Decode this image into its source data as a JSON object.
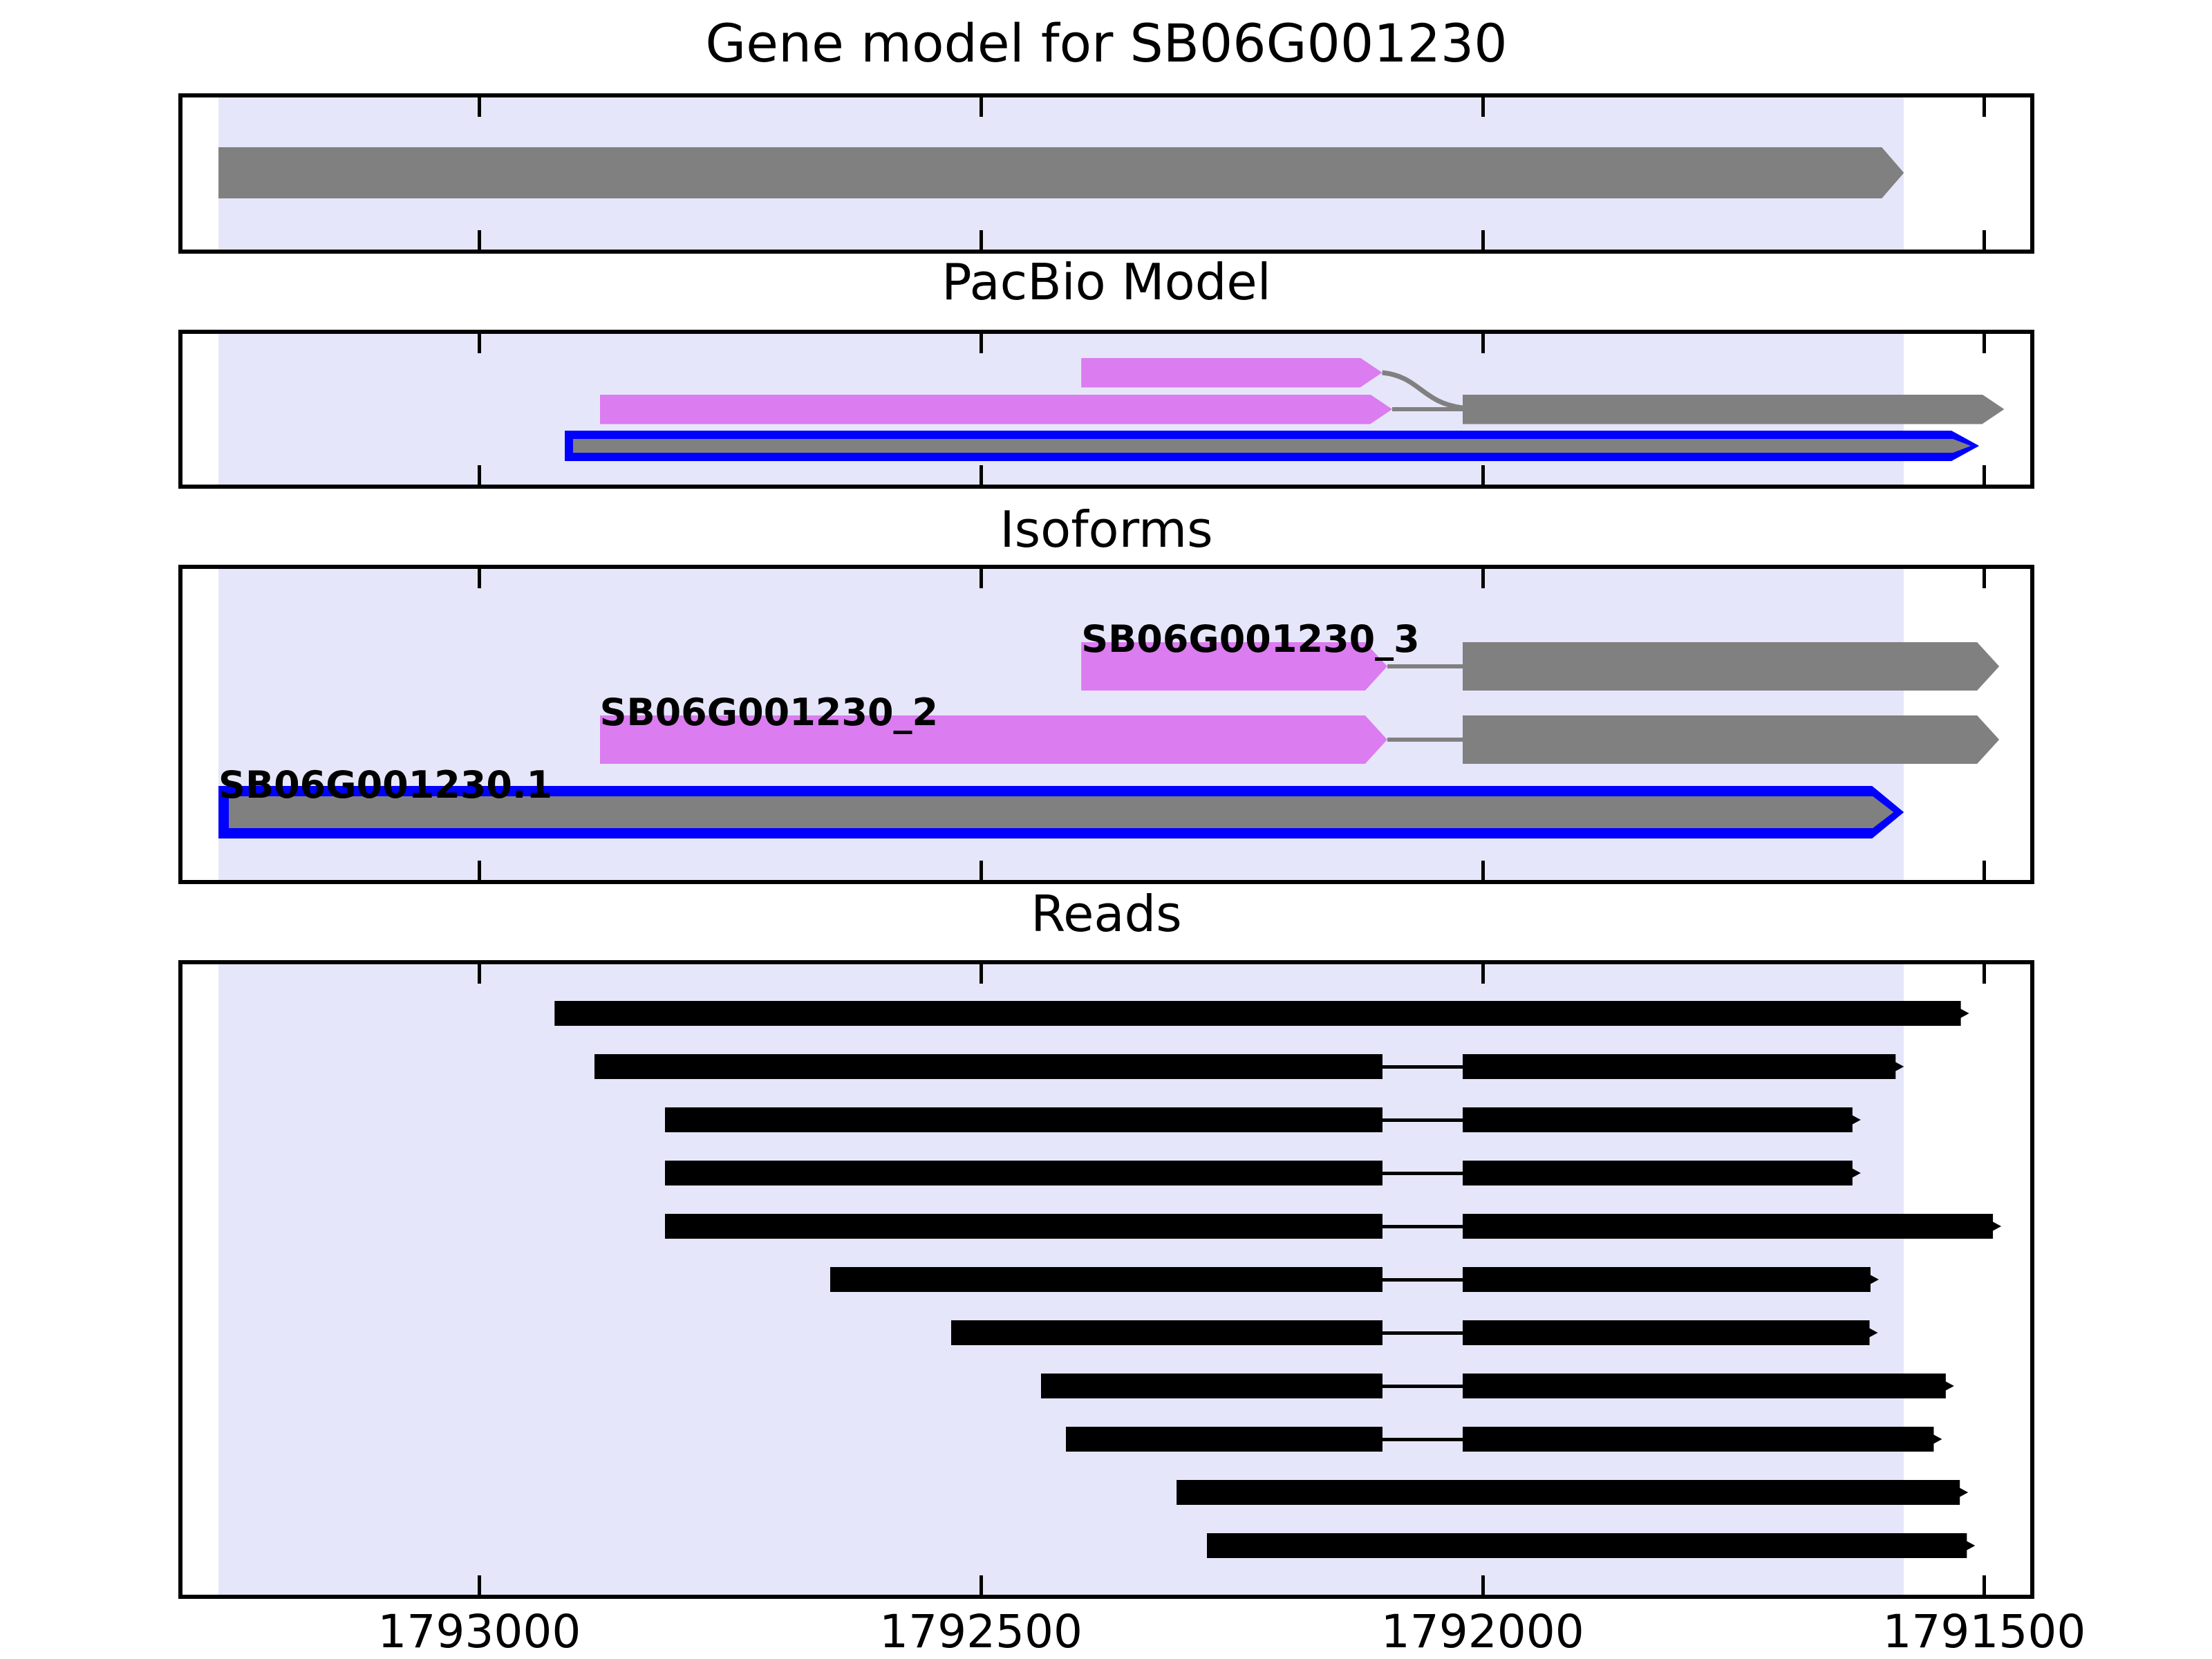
{
  "chart_data": {
    "type": "genomic-tracks",
    "title": "Gene model for SB06G001230",
    "x_axis": {
      "left_value": 1793300,
      "right_value": 1791450,
      "direction": "decreasing",
      "tick_values": [
        1793000,
        1792500,
        1792000,
        1791500
      ],
      "tick_labels": [
        "1793000",
        "1792500",
        "1792000",
        "1791500"
      ]
    },
    "highlight_region": {
      "start": 1793260,
      "end": 1791580
    },
    "panels": [
      {
        "id": "gene",
        "title": "Gene model for SB06G001230",
        "features": [
          {
            "kind": "arrow",
            "color": "gray",
            "start": 1793260,
            "end": 1791580,
            "row": 0
          }
        ]
      },
      {
        "id": "pacbio",
        "title": "PacBio Model",
        "features": [
          {
            "kind": "arrow",
            "color": "violet",
            "start": 1792400,
            "end": 1792100,
            "row": 0
          },
          {
            "kind": "curve",
            "from": 1792100,
            "to": 1792020,
            "from_row": 0,
            "to_row": 1
          },
          {
            "kind": "line",
            "from": 1792090,
            "to": 1792020,
            "row": 1,
            "color": "gray"
          },
          {
            "kind": "arrow",
            "color": "violet",
            "start": 1792880,
            "end": 1792090,
            "row": 1
          },
          {
            "kind": "arrow",
            "color": "gray",
            "start": 1792020,
            "end": 1791480,
            "row": 1
          },
          {
            "kind": "ref-bar",
            "start": 1792915,
            "end": 1791505,
            "row": 2
          }
        ]
      },
      {
        "id": "isoforms",
        "title": "Isoforms",
        "features": [
          {
            "kind": "label",
            "text": "SB06G001230_3",
            "at": 1792400,
            "row": 0
          },
          {
            "kind": "line",
            "from": 1792095,
            "to": 1792020,
            "row": 0,
            "color": "gray"
          },
          {
            "kind": "arrow",
            "color": "violet",
            "start": 1792400,
            "end": 1792095,
            "row": 0
          },
          {
            "kind": "arrow",
            "color": "gray",
            "start": 1792020,
            "end": 1791485,
            "row": 0
          },
          {
            "kind": "label",
            "text": "SB06G001230_2",
            "at": 1792880,
            "row": 1
          },
          {
            "kind": "line",
            "from": 1792095,
            "to": 1792020,
            "row": 1,
            "color": "gray"
          },
          {
            "kind": "arrow",
            "color": "violet",
            "start": 1792880,
            "end": 1792095,
            "row": 1
          },
          {
            "kind": "arrow",
            "color": "gray",
            "start": 1792020,
            "end": 1791485,
            "row": 1
          },
          {
            "kind": "label",
            "text": "SB06G001230.1",
            "at": 1793260,
            "row": 2
          },
          {
            "kind": "ref-bar",
            "start": 1793260,
            "end": 1791580,
            "row": 2
          }
        ]
      },
      {
        "id": "reads",
        "title": "Reads",
        "reads": [
          [
            [
              1792925,
              1791515
            ]
          ],
          [
            [
              1792885,
              1792100
            ],
            [
              1792020,
              1791580
            ]
          ],
          [
            [
              1792815,
              1792100
            ],
            [
              1792020,
              1791623
            ]
          ],
          [
            [
              1792815,
              1792100
            ],
            [
              1792020,
              1791623
            ]
          ],
          [
            [
              1792815,
              1792100
            ],
            [
              1792020,
              1791483
            ]
          ],
          [
            [
              1792650,
              1792100
            ],
            [
              1792020,
              1791605
            ]
          ],
          [
            [
              1792530,
              1792100
            ],
            [
              1792020,
              1791606
            ]
          ],
          [
            [
              1792440,
              1792100
            ],
            [
              1792020,
              1791530
            ]
          ],
          [
            [
              1792415,
              1792100
            ],
            [
              1792020,
              1791542
            ]
          ],
          [
            [
              1792305,
              1791516
            ]
          ],
          [
            [
              1792275,
              1791509
            ]
          ]
        ]
      }
    ]
  },
  "colors": {
    "background": "#FFFFFF",
    "frame": "#000000",
    "highlight": "#E6E6FA",
    "gray": "#808080",
    "violet": "#DB7CF0",
    "blue": "#0000FF",
    "read": "#000000"
  }
}
